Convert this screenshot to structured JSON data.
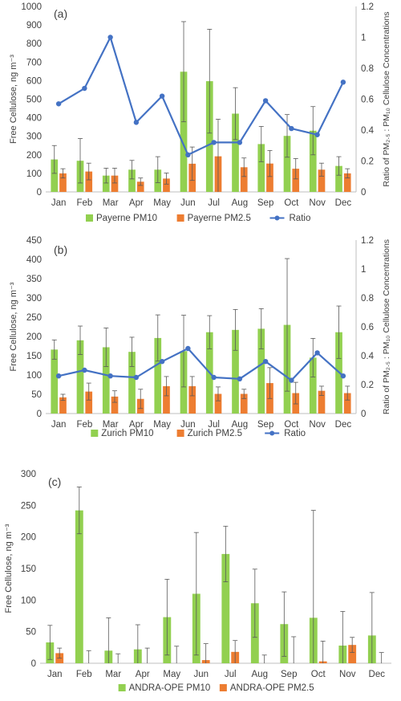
{
  "chart_data": [
    {
      "type": "bar",
      "panel_label": "(a)",
      "categories": [
        "Jan",
        "Feb",
        "Mar",
        "Apr",
        "May",
        "Jun",
        "Jul",
        "Aug",
        "Sep",
        "Oct",
        "Nov",
        "Dec"
      ],
      "ylim": [
        0,
        1000
      ],
      "yticks": [
        0,
        100,
        200,
        300,
        400,
        500,
        600,
        700,
        800,
        900,
        1000
      ],
      "y2lim": [
        0,
        1.2
      ],
      "y2ticks": [
        "0",
        "0.2",
        "0.4",
        "0.6",
        "0.8",
        "1",
        "1.2"
      ],
      "ylabel": "Free Cellulose, ng m⁻³",
      "y2label": "Ratio of PM₂.₅ : PM₁₀ Cellulose Concentrations",
      "series": [
        {
          "name": "Payerne PM10",
          "color": "#92d050",
          "values": [
            175,
            168,
            88,
            120,
            120,
            648,
            597,
            422,
            258,
            302,
            330,
            140
          ],
          "errors": [
            75,
            120,
            40,
            50,
            70,
            270,
            280,
            140,
            95,
            115,
            130,
            50
          ]
        },
        {
          "name": "Payerne PM2.5",
          "color": "#ed7d31",
          "values": [
            100,
            110,
            88,
            55,
            72,
            152,
            192,
            133,
            153,
            125,
            120,
            100
          ],
          "errors": [
            25,
            45,
            40,
            20,
            30,
            90,
            200,
            50,
            70,
            55,
            35,
            25
          ]
        }
      ],
      "line": {
        "name": "Ratio",
        "color": "#4472c4",
        "values": [
          0.57,
          0.67,
          1.0,
          0.45,
          0.62,
          0.24,
          0.32,
          0.32,
          0.59,
          0.41,
          0.37,
          0.71
        ]
      }
    },
    {
      "type": "bar",
      "panel_label": "(b)",
      "categories": [
        "Jan",
        "Feb",
        "Mar",
        "Apr",
        "May",
        "Jun",
        "Jul",
        "Aug",
        "Sep",
        "Oct",
        "Nov",
        "Dec"
      ],
      "ylim": [
        0,
        450
      ],
      "yticks": [
        0,
        50,
        100,
        150,
        200,
        250,
        300,
        350,
        400,
        450
      ],
      "y2lim": [
        0,
        1.2
      ],
      "y2ticks": [
        "0",
        "0.2",
        "0.4",
        "0.6",
        "0.8",
        "1",
        "1.2"
      ],
      "ylabel": "Free Cellulose, ng m⁻³",
      "y2label": "Ratio of PM₂.₅ : PM₁₀ Cellulose Concentrations",
      "series": [
        {
          "name": "Zurich PM10",
          "color": "#92d050",
          "values": [
            166,
            190,
            172,
            160,
            196,
            162,
            211,
            217,
            220,
            230,
            145,
            211
          ],
          "errors": [
            25,
            37,
            50,
            38,
            60,
            93,
            43,
            53,
            52,
            172,
            50,
            68
          ]
        },
        {
          "name": "Zurich PM2.5",
          "color": "#ed7d31",
          "values": [
            42,
            57,
            44,
            38,
            71,
            71,
            51,
            51,
            79,
            53,
            59,
            53
          ],
          "errors": [
            8,
            22,
            15,
            25,
            25,
            25,
            18,
            12,
            40,
            28,
            12,
            18
          ]
        }
      ],
      "line": {
        "name": "Ratio",
        "color": "#4472c4",
        "values": [
          0.26,
          0.3,
          0.26,
          0.25,
          0.36,
          0.45,
          0.25,
          0.24,
          0.36,
          0.23,
          0.42,
          0.26
        ]
      }
    },
    {
      "type": "bar",
      "panel_label": "(c)",
      "categories": [
        "Jan",
        "Feb",
        "Mar",
        "Apr",
        "May",
        "Jun",
        "Jul",
        "Aug",
        "Sep",
        "Oct",
        "Nov",
        "Dec"
      ],
      "ylim": [
        0,
        300
      ],
      "yticks": [
        0,
        50,
        100,
        150,
        200,
        250,
        300
      ],
      "ylabel": "Free Cellulose, ng m⁻³",
      "series": [
        {
          "name": "ANDRA-OPE PM10",
          "color": "#92d050",
          "values": [
            33,
            242,
            20,
            22,
            73,
            110,
            173,
            95,
            62,
            72,
            28,
            44
          ],
          "errors": [
            27,
            37,
            52,
            39,
            60,
            97,
            44,
            54,
            51,
            170,
            54,
            68
          ]
        },
        {
          "name": "ANDRA-OPE PM2.5",
          "color": "#ed7d31",
          "values": [
            16,
            0,
            0,
            0,
            0,
            5,
            18,
            0,
            0,
            3,
            29,
            0
          ],
          "errors": [
            8,
            20,
            15,
            24,
            27,
            26,
            18,
            13,
            42,
            32,
            12,
            17
          ]
        }
      ]
    }
  ]
}
